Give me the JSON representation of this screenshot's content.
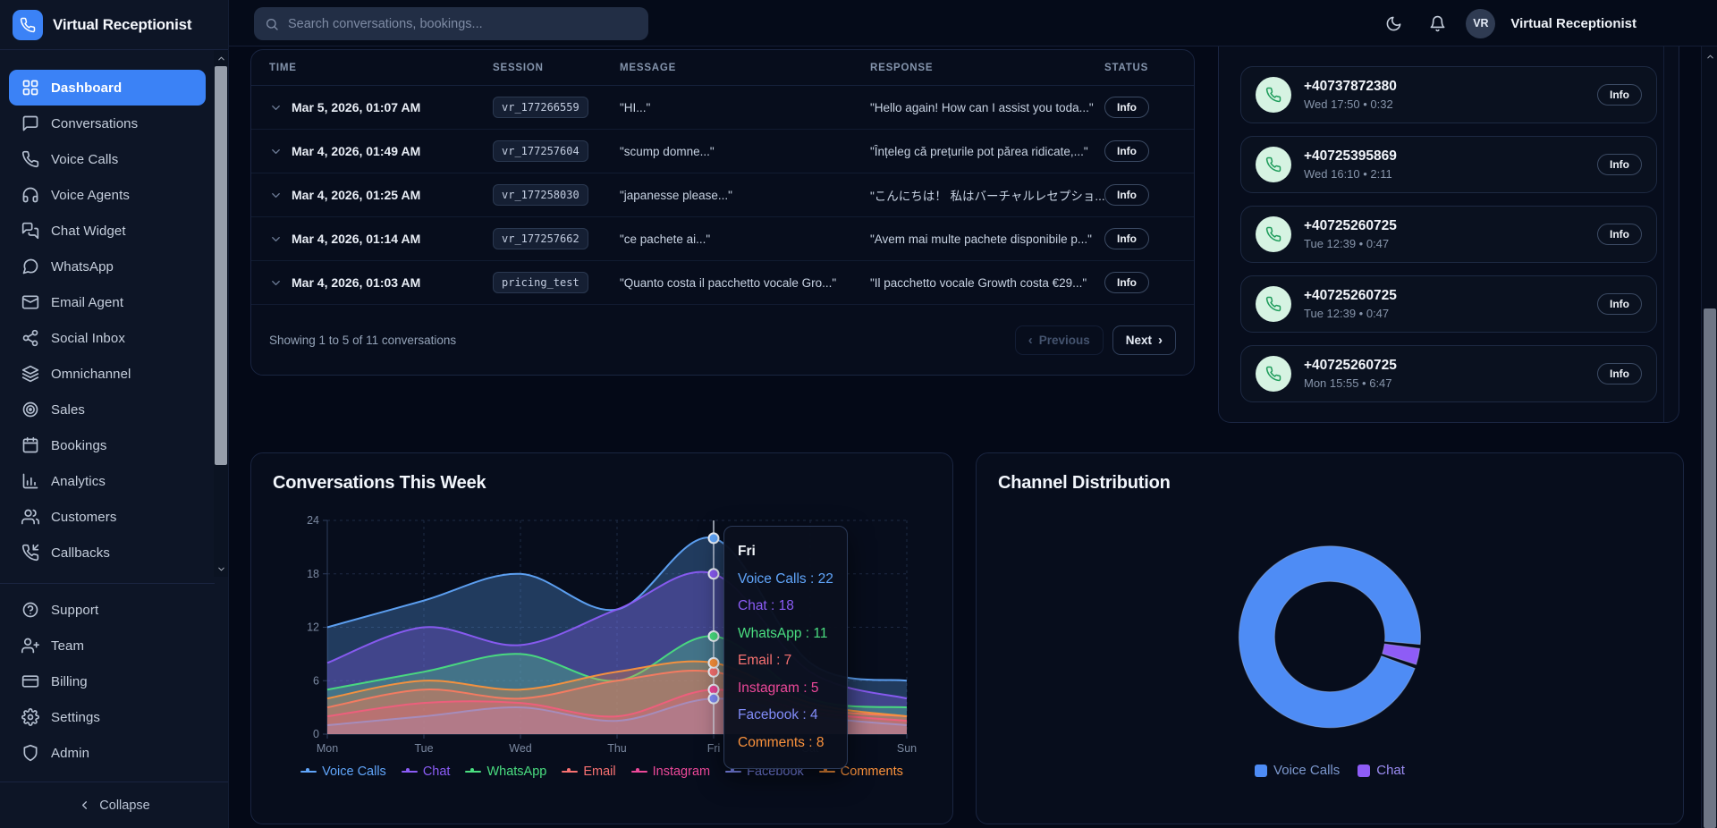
{
  "app": {
    "name": "Virtual Receptionist"
  },
  "topbar": {
    "search_placeholder": "Search conversations, bookings...",
    "user_initials": "VR",
    "user_name": "Virtual Receptionist",
    "icons": {
      "search": "magnifier",
      "dark_mode": "moon",
      "notifications": "bell"
    }
  },
  "sidebar": {
    "items": [
      {
        "label": "Dashboard",
        "icon": "dashboard",
        "active": true
      },
      {
        "label": "Conversations",
        "icon": "message-square",
        "active": false
      },
      {
        "label": "Voice Calls",
        "icon": "phone",
        "active": false
      },
      {
        "label": "Voice Agents",
        "icon": "headphones",
        "active": false
      },
      {
        "label": "Chat Widget",
        "icon": "messages-square",
        "active": false
      },
      {
        "label": "WhatsApp",
        "icon": "message-circle",
        "active": false
      },
      {
        "label": "Email Agent",
        "icon": "mail",
        "active": false
      },
      {
        "label": "Social Inbox",
        "icon": "share-network",
        "active": false
      },
      {
        "label": "Omnichannel",
        "icon": "layers",
        "active": false
      },
      {
        "label": "Sales",
        "icon": "target",
        "active": false
      },
      {
        "label": "Bookings",
        "icon": "calendar",
        "active": false
      },
      {
        "label": "Analytics",
        "icon": "bar-chart",
        "active": false
      },
      {
        "label": "Customers",
        "icon": "users",
        "active": false
      },
      {
        "label": "Callbacks",
        "icon": "phone-incoming",
        "active": false
      }
    ],
    "footer_items": [
      {
        "label": "Support",
        "icon": "help-circle"
      },
      {
        "label": "Team",
        "icon": "user-plus"
      },
      {
        "label": "Billing",
        "icon": "credit-card"
      },
      {
        "label": "Settings",
        "icon": "gear"
      },
      {
        "label": "Admin",
        "icon": "shield"
      }
    ],
    "collapse_label": "Collapse"
  },
  "conversations_table": {
    "columns": [
      "TIME",
      "SESSION",
      "MESSAGE",
      "RESPONSE",
      "STATUS"
    ],
    "rows": [
      {
        "time": "Mar 5, 2026, 01:07 AM",
        "session": "vr_177266559",
        "message": "\"HI...\"",
        "response": "\"Hello again! How can I assist you toda...\"",
        "status": "Info"
      },
      {
        "time": "Mar 4, 2026, 01:49 AM",
        "session": "vr_177257604",
        "message": "\"scump domne...\"",
        "response": "\"Înțeleg că prețurile pot părea ridicate,...\"",
        "status": "Info"
      },
      {
        "time": "Mar 4, 2026, 01:25 AM",
        "session": "vr_177258030",
        "message": "\"japanesse please...\"",
        "response": "\"こんにちは！ 私はバーチャルレセプショ...\"",
        "status": "Info"
      },
      {
        "time": "Mar 4, 2026, 01:14 AM",
        "session": "vr_177257662",
        "message": "\"ce pachete ai...\"",
        "response": "\"Avem mai multe pachete disponibile p...\"",
        "status": "Info"
      },
      {
        "time": "Mar 4, 2026, 01:03 AM",
        "session": "pricing_test",
        "message": "\"Quanto costa il pacchetto vocale Gro...\"",
        "response": "\"Il pacchetto vocale Growth costa €29...\"",
        "status": "Info"
      }
    ],
    "footer": {
      "summary": "Showing 1 to 5 of 11 conversations",
      "prev_label": "Previous",
      "prev_glyph": "‹",
      "next_label": "Next",
      "next_glyph": "›"
    }
  },
  "recent_calls": {
    "action_label": "Info",
    "icon": "phone",
    "items": [
      {
        "number": "+40737872380",
        "meta": "Wed 17:50 • 0:32"
      },
      {
        "number": "+40725395869",
        "meta": "Wed 16:10 • 2:11"
      },
      {
        "number": "+40725260725",
        "meta": "Tue 12:39 • 0:47"
      },
      {
        "number": "+40725260725",
        "meta": "Tue 12:39 • 0:47"
      },
      {
        "number": "+40725260725",
        "meta": "Mon 15:55 • 6:47"
      }
    ]
  },
  "chart_data": [
    {
      "type": "area",
      "title": "Conversations This Week",
      "categories": [
        "Mon",
        "Tue",
        "Wed",
        "Thu",
        "Fri",
        "Sat",
        "Sun"
      ],
      "series": [
        {
          "name": "Voice Calls",
          "color": "#60a5fa",
          "values": [
            12,
            15,
            18,
            14,
            22,
            8,
            6
          ]
        },
        {
          "name": "Chat",
          "color": "#8b5cf6",
          "values": [
            8,
            12,
            10,
            14,
            18,
            7,
            4
          ]
        },
        {
          "name": "WhatsApp",
          "color": "#4ade80",
          "values": [
            5,
            7,
            9,
            6,
            11,
            4,
            3
          ]
        },
        {
          "name": "Email",
          "color": "#f87171",
          "values": [
            3,
            5,
            4,
            6,
            7,
            3,
            2
          ]
        },
        {
          "name": "Instagram",
          "color": "#ec4899",
          "values": [
            2,
            3.5,
            3.5,
            2,
            5,
            2.5,
            1.5
          ]
        },
        {
          "name": "Facebook",
          "color": "#818cf8",
          "values": [
            1,
            2,
            3,
            1.5,
            4,
            2,
            1
          ]
        },
        {
          "name": "Comments",
          "color": "#fb923c",
          "values": [
            4,
            6,
            5,
            7,
            8,
            3.5,
            2
          ]
        }
      ],
      "ylim": [
        0,
        24
      ],
      "yticks": [
        0,
        6,
        12,
        18,
        24
      ],
      "grid": true,
      "legend_position": "bottom",
      "tooltip": {
        "label": "Fri",
        "x_index": 4
      }
    },
    {
      "type": "pie",
      "title": "Channel Distribution",
      "labels": [
        "Voice Calls",
        "Chat"
      ],
      "values": [
        96.4,
        3.6
      ],
      "colors": [
        "#4e8cf5",
        "#8e5cf6"
      ],
      "unit": "percent-estimated",
      "legend_position": "bottom"
    }
  ]
}
